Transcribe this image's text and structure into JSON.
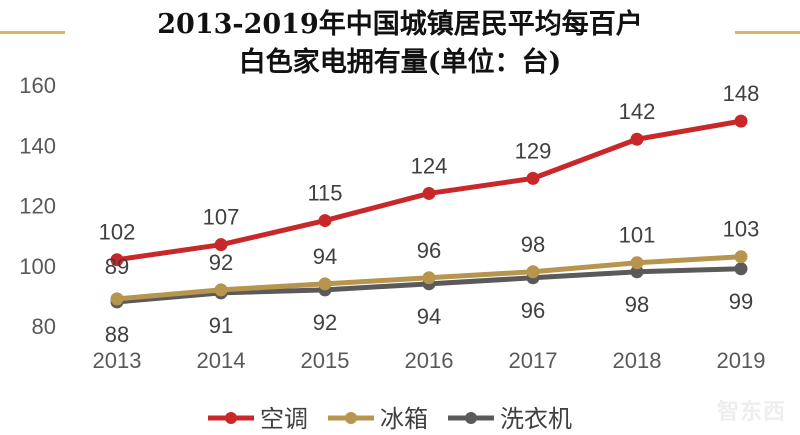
{
  "chart_data": {
    "type": "line",
    "title_line1": "2013-2019年中国城镇居民平均每百户",
    "title_line2": "白色家电拥有量(单位：台)",
    "categories": [
      "2013",
      "2014",
      "2015",
      "2016",
      "2017",
      "2018",
      "2019"
    ],
    "ylim": [
      80,
      160
    ],
    "yticks": [
      80,
      100,
      120,
      140,
      160
    ],
    "grid": false,
    "legend_position": "bottom",
    "series": [
      {
        "name": "空调",
        "values": [
          102,
          107,
          115,
          124,
          129,
          142,
          148
        ],
        "color": "#C8282A",
        "label_pos": "above"
      },
      {
        "name": "冰箱",
        "values": [
          89,
          92,
          94,
          96,
          98,
          101,
          103
        ],
        "color": "#B8954E",
        "label_pos": "above"
      },
      {
        "name": "洗衣机",
        "values": [
          88,
          91,
          92,
          94,
          96,
          98,
          99
        ],
        "color": "#5A5A5A",
        "label_pos": "below"
      }
    ]
  },
  "watermark": "智东西",
  "decor_color": "#D9B46A"
}
